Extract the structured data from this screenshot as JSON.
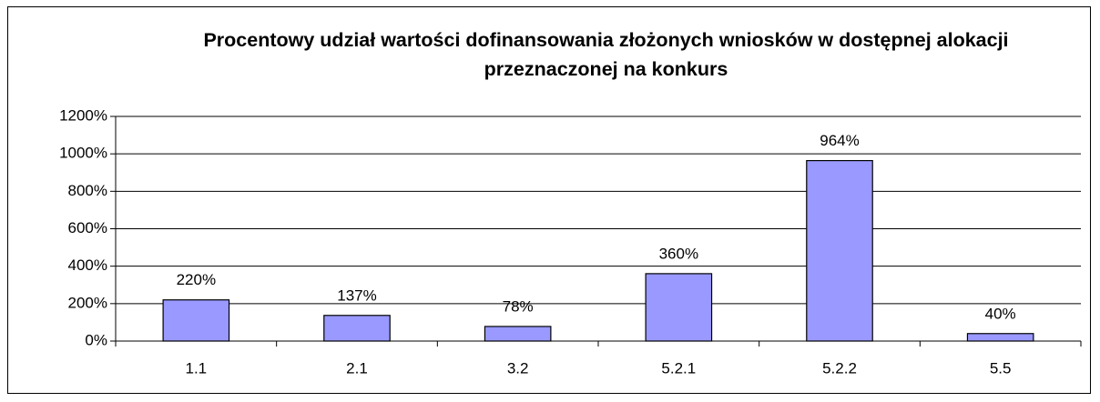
{
  "chart_data": {
    "type": "bar",
    "title": "Procentowy udział wartości dofinansowania złożonych wniosków w dostępnej alokacji przeznaczonej na konkurs",
    "categories": [
      "1.1",
      "2.1",
      "3.2",
      "5.2.1",
      "5.2.2",
      "5.5"
    ],
    "values": [
      220,
      137,
      78,
      360,
      964,
      40
    ],
    "value_labels": [
      "220%",
      "137%",
      "78%",
      "360%",
      "964%",
      "40%"
    ],
    "color": "#9999ff",
    "ylim": [
      0,
      1200
    ],
    "yticks": [
      {
        "value": 0,
        "label": "0%"
      },
      {
        "value": 200,
        "label": "200%"
      },
      {
        "value": 400,
        "label": "400%"
      },
      {
        "value": 600,
        "label": "600%"
      },
      {
        "value": 800,
        "label": "800%"
      },
      {
        "value": 1000,
        "label": "1000%"
      },
      {
        "value": 1200,
        "label": "1200%"
      }
    ],
    "grid": true
  }
}
